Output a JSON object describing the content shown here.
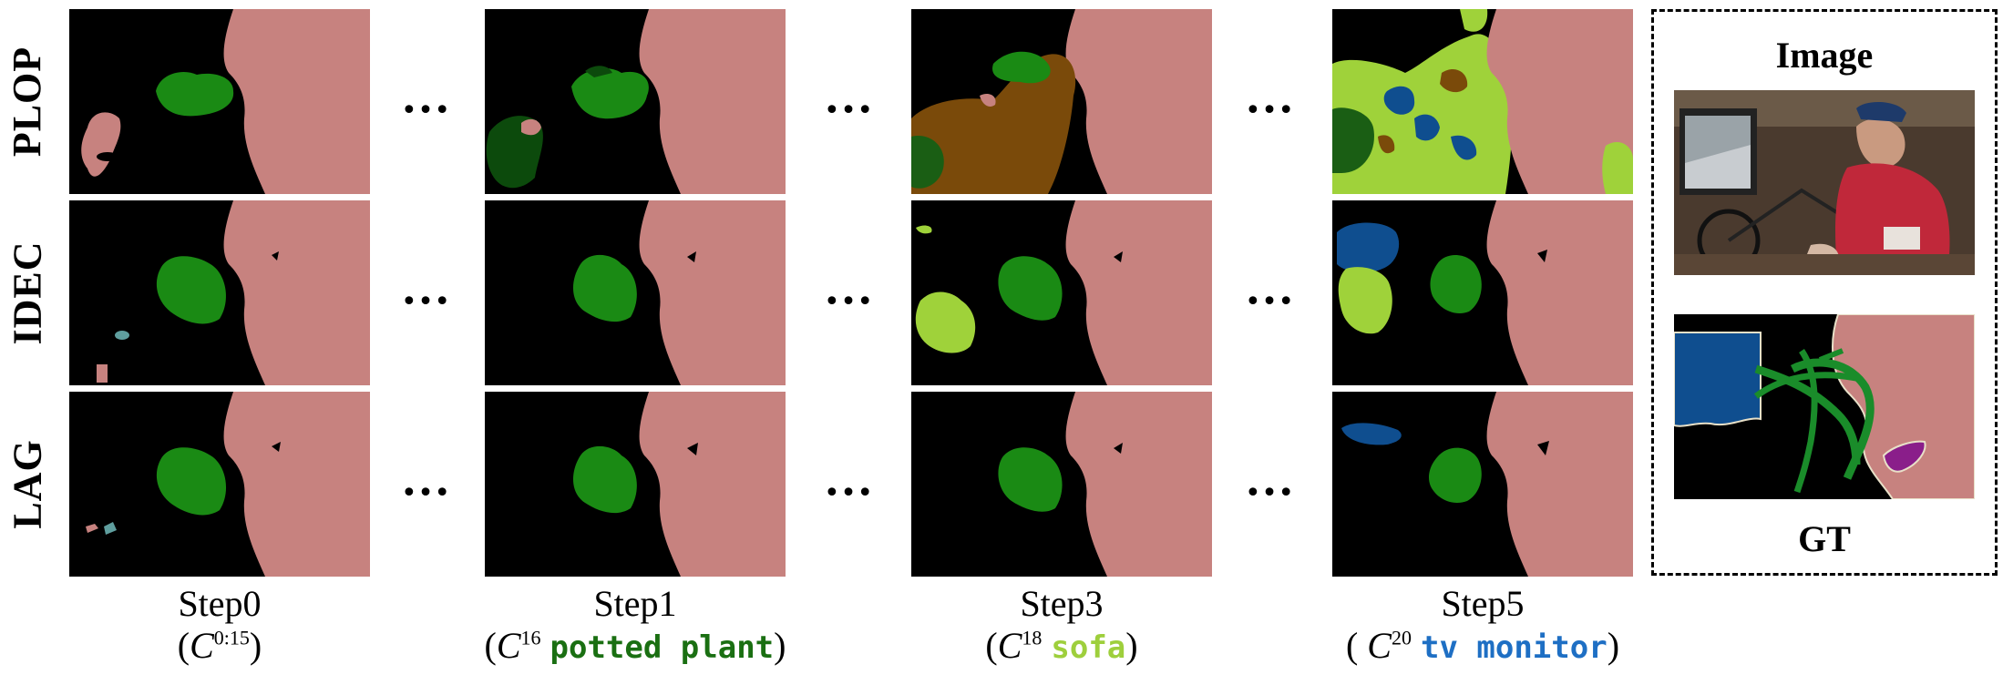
{
  "rows": [
    {
      "label": "PLOP"
    },
    {
      "label": "IDEC"
    },
    {
      "label": "LAG"
    }
  ],
  "steps": [
    {
      "title": "Step0",
      "cap_prefix": "(",
      "cap_letter": "C",
      "cap_sup": "0:15",
      "class_name": "",
      "class_color": "#000000",
      "cap_suffix": ")"
    },
    {
      "title": "Step1",
      "cap_prefix": "(",
      "cap_letter": "C",
      "cap_sup": "16",
      "class_name": "potted plant",
      "class_color": "#1a6f12",
      "cap_suffix": ")"
    },
    {
      "title": "Step3",
      "cap_prefix": "(",
      "cap_letter": "C",
      "cap_sup": "18",
      "class_name": "sofa",
      "class_color": "#9ecf3c",
      "cap_suffix": ")"
    },
    {
      "title": "Step5",
      "cap_prefix": "( ",
      "cap_letter": "C",
      "cap_sup": "20",
      "class_name": "tv monitor",
      "class_color": "#1e6fc4",
      "cap_suffix": ")"
    }
  ],
  "ellipsis": "…",
  "side_panel": {
    "image_label": "Image",
    "gt_label": "GT"
  },
  "colors": {
    "person": "#c7827f",
    "potted_plant": "#1a7a14",
    "dark_plant": "#0c4a0c",
    "sofa": "#9fd23a",
    "tv_monitor": "#0f4e8f",
    "chair": "#7a4a0a",
    "bottle": "#5f9e9e",
    "bicycle": "#1a8c2a",
    "purple": "#8a1e8a",
    "background": "#000000"
  }
}
